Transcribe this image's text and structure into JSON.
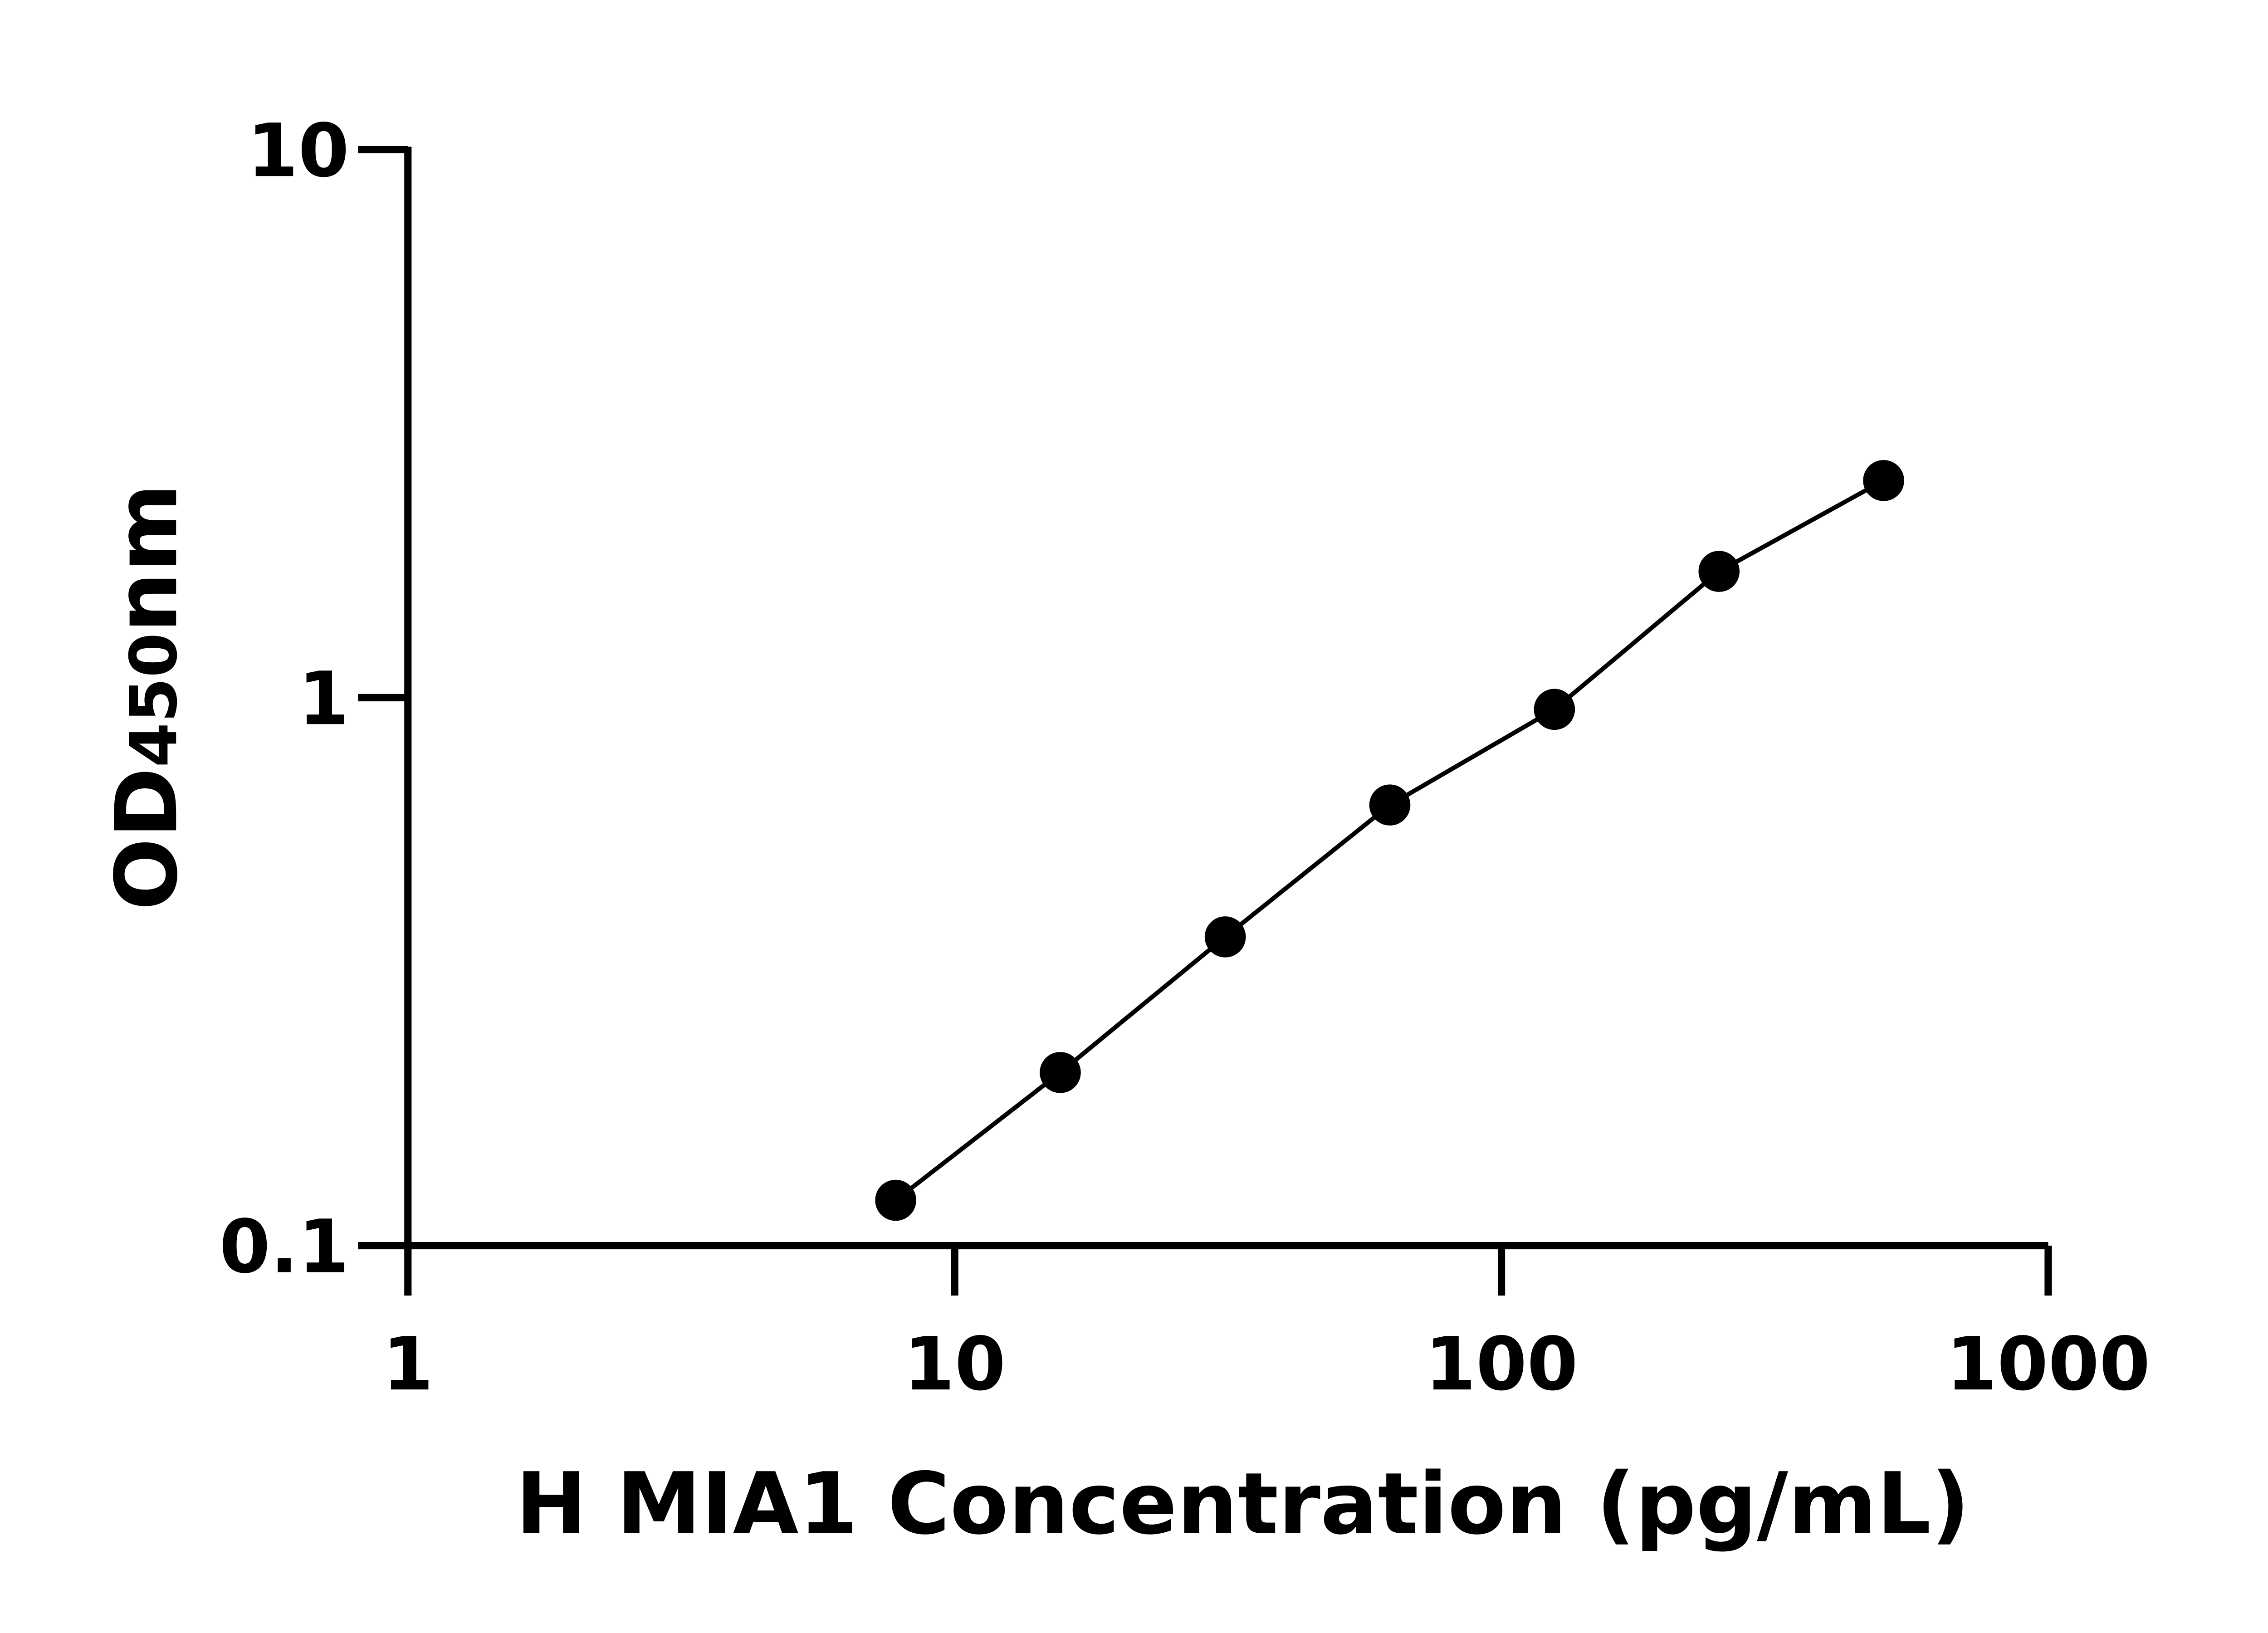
{
  "chart_data": {
    "type": "scatter",
    "title": "",
    "xlabel": "H MIA1 Concentration (pg/mL)",
    "ylabel": {
      "main": "OD",
      "sub": "450",
      "suffix": "nm"
    },
    "x_scale": "log",
    "y_scale": "log",
    "xlim": [
      1,
      1000
    ],
    "ylim": [
      0.1,
      10
    ],
    "x_ticks": [
      1,
      10,
      100,
      1000
    ],
    "x_tick_labels": [
      "1",
      "10",
      "100",
      "1000"
    ],
    "y_ticks": [
      0.1,
      1,
      10
    ],
    "y_tick_labels": [
      "0.1",
      "1",
      "10"
    ],
    "grid": false,
    "legend": "none",
    "marker_color": "#000000",
    "line_color": "#000000",
    "series": [
      {
        "x": [
          7.8,
          15.6,
          31.25,
          62.5,
          125,
          250,
          500
        ],
        "y": [
          0.121,
          0.207,
          0.366,
          0.637,
          0.952,
          1.7,
          2.49
        ]
      }
    ]
  }
}
